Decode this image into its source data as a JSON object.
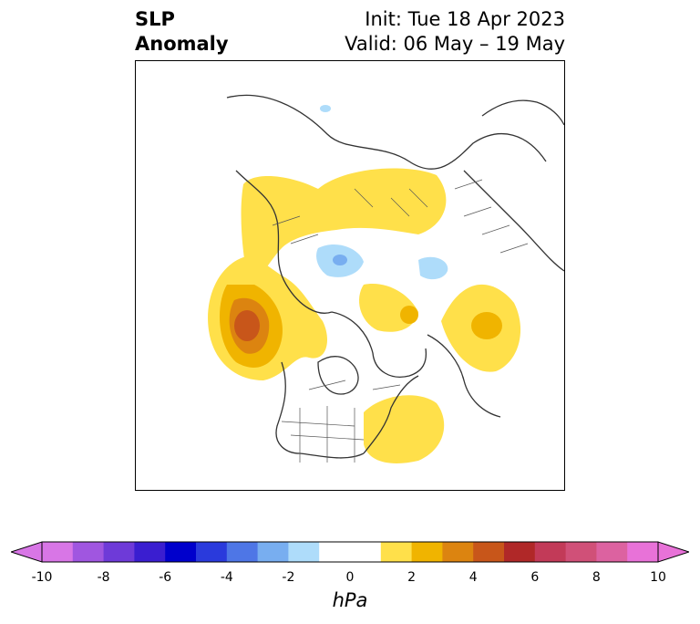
{
  "title": {
    "left_line1": "SLP",
    "left_line2": "Anomaly",
    "right_line1": "Init: Tue 18 Apr 2023",
    "right_line2": "Valid: 06 May – 19 May"
  },
  "colorbar": {
    "label": "hPa",
    "ticks": [
      "-10",
      "-8",
      "-6",
      "-4",
      "-2",
      "0",
      "2",
      "4",
      "6",
      "8",
      "10"
    ],
    "colors": [
      "#d876e6",
      "#a056e0",
      "#6e3ad8",
      "#3a1ed0",
      "#0000cc",
      "#2a3adc",
      "#4e76e6",
      "#78aef0",
      "#aedcfa",
      "#ffffff",
      "#ffffff",
      "#ffe04a",
      "#f0b400",
      "#dc8410",
      "#c8561a",
      "#b02828",
      "#c23a58",
      "#d05078",
      "#dc62a0",
      "#e872d8"
    ],
    "extend_low_color": "#d876e6",
    "extend_high_color": "#e872d8"
  },
  "map": {
    "projection": "north-polar-stereographic",
    "region": "Northern Hemisphere",
    "land_outline_color": "#333333",
    "anomaly_colors": {
      "pos_1": "#ffe04a",
      "pos_2": "#f0b400",
      "pos_3": "#dc8410",
      "pos_4": "#c8561a",
      "neg_1": "#aedcfa",
      "neg_2": "#78aef0"
    }
  }
}
